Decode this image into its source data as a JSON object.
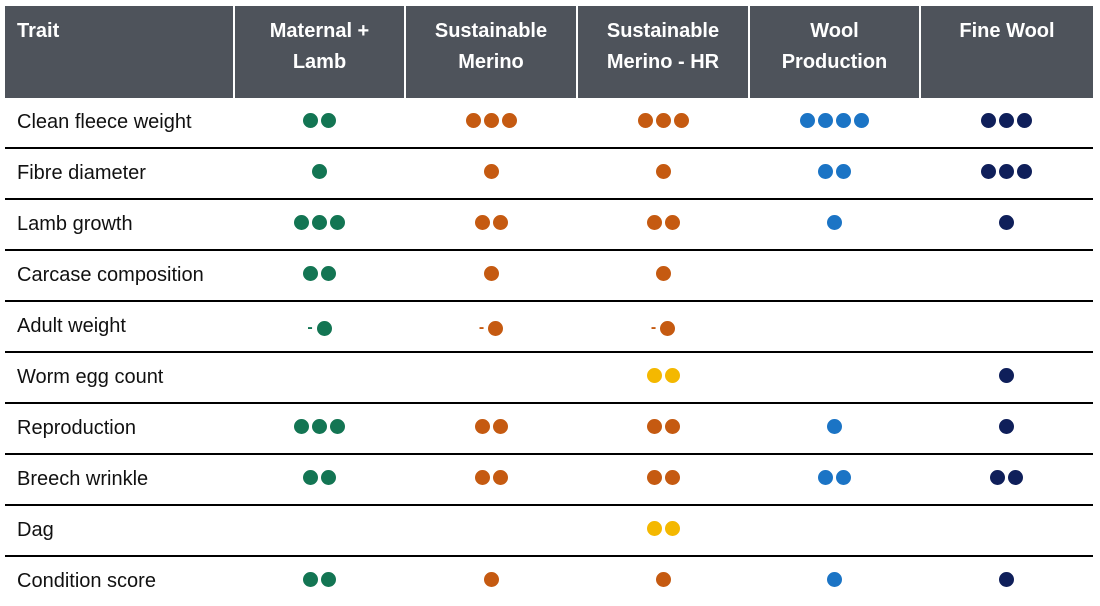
{
  "headers": [
    "Trait",
    "Maternal +\nLamb",
    "Sustainable\nMerino",
    "Sustainable\nMerino - HR",
    "Wool\nProduction",
    "Fine Wool"
  ],
  "colors": {
    "maternal": "#137553",
    "merino": "#c55a11",
    "highlight": "#f4b800",
    "wool": "#1b74c5",
    "fine": "#0f1f5a",
    "header_bg": "#4e535b"
  },
  "rows": [
    {
      "trait": "Clean fleece weight",
      "cells": [
        {
          "n": 2,
          "c": "maternal"
        },
        {
          "n": 3,
          "c": "merino"
        },
        {
          "n": 3,
          "c": "merino"
        },
        {
          "n": 4,
          "c": "wool"
        },
        {
          "n": 3,
          "c": "fine"
        }
      ]
    },
    {
      "trait": "Fibre diameter",
      "cells": [
        {
          "n": 1,
          "c": "maternal"
        },
        {
          "n": 1,
          "c": "merino"
        },
        {
          "n": 1,
          "c": "merino"
        },
        {
          "n": 2,
          "c": "wool"
        },
        {
          "n": 3,
          "c": "fine"
        }
      ]
    },
    {
      "trait": "Lamb growth",
      "cells": [
        {
          "n": 3,
          "c": "maternal"
        },
        {
          "n": 2,
          "c": "merino"
        },
        {
          "n": 2,
          "c": "merino"
        },
        {
          "n": 1,
          "c": "wool"
        },
        {
          "n": 1,
          "c": "fine"
        }
      ]
    },
    {
      "trait": "Carcase composition",
      "cells": [
        {
          "n": 2,
          "c": "maternal"
        },
        {
          "n": 1,
          "c": "merino"
        },
        {
          "n": 1,
          "c": "merino"
        },
        {
          "n": 0
        },
        {
          "n": 0
        }
      ]
    },
    {
      "trait": "Adult weight",
      "cells": [
        {
          "n": 1,
          "c": "maternal",
          "neg": true
        },
        {
          "n": 1,
          "c": "merino",
          "neg": true
        },
        {
          "n": 1,
          "c": "merino",
          "neg": true
        },
        {
          "n": 0
        },
        {
          "n": 0
        }
      ]
    },
    {
      "trait": "Worm egg count",
      "cells": [
        {
          "n": 0
        },
        {
          "n": 0
        },
        {
          "n": 2,
          "c": "highlight"
        },
        {
          "n": 0
        },
        {
          "n": 1,
          "c": "fine"
        }
      ]
    },
    {
      "trait": "Reproduction",
      "cells": [
        {
          "n": 3,
          "c": "maternal"
        },
        {
          "n": 2,
          "c": "merino"
        },
        {
          "n": 2,
          "c": "merino"
        },
        {
          "n": 1,
          "c": "wool"
        },
        {
          "n": 1,
          "c": "fine"
        }
      ]
    },
    {
      "trait": "Breech wrinkle",
      "cells": [
        {
          "n": 2,
          "c": "maternal"
        },
        {
          "n": 2,
          "c": "merino"
        },
        {
          "n": 2,
          "c": "merino"
        },
        {
          "n": 2,
          "c": "wool"
        },
        {
          "n": 2,
          "c": "fine"
        }
      ]
    },
    {
      "trait": "Dag",
      "cells": [
        {
          "n": 0
        },
        {
          "n": 0
        },
        {
          "n": 2,
          "c": "highlight"
        },
        {
          "n": 0
        },
        {
          "n": 0
        }
      ]
    },
    {
      "trait": "Condition score",
      "cells": [
        {
          "n": 2,
          "c": "maternal"
        },
        {
          "n": 1,
          "c": "merino"
        },
        {
          "n": 1,
          "c": "merino"
        },
        {
          "n": 1,
          "c": "wool"
        },
        {
          "n": 1,
          "c": "fine"
        }
      ]
    }
  ]
}
